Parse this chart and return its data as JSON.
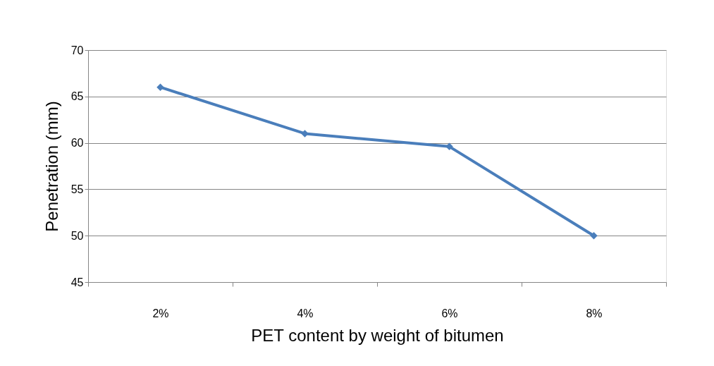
{
  "chart_data": {
    "type": "line",
    "xlabel": "PET content by weight of bitumen",
    "ylabel": "Penetration (mm)",
    "categories": [
      "2%",
      "4%",
      "6%",
      "8%"
    ],
    "series": [
      {
        "color": "#4a7ebb",
        "values": [
          66,
          61,
          59.6,
          50
        ]
      }
    ],
    "ylim": [
      45,
      70
    ],
    "yticks": [
      45,
      50,
      55,
      60,
      65,
      70
    ],
    "grid": "y",
    "marker": "diamond",
    "line_style": "solid",
    "legend": false
  }
}
